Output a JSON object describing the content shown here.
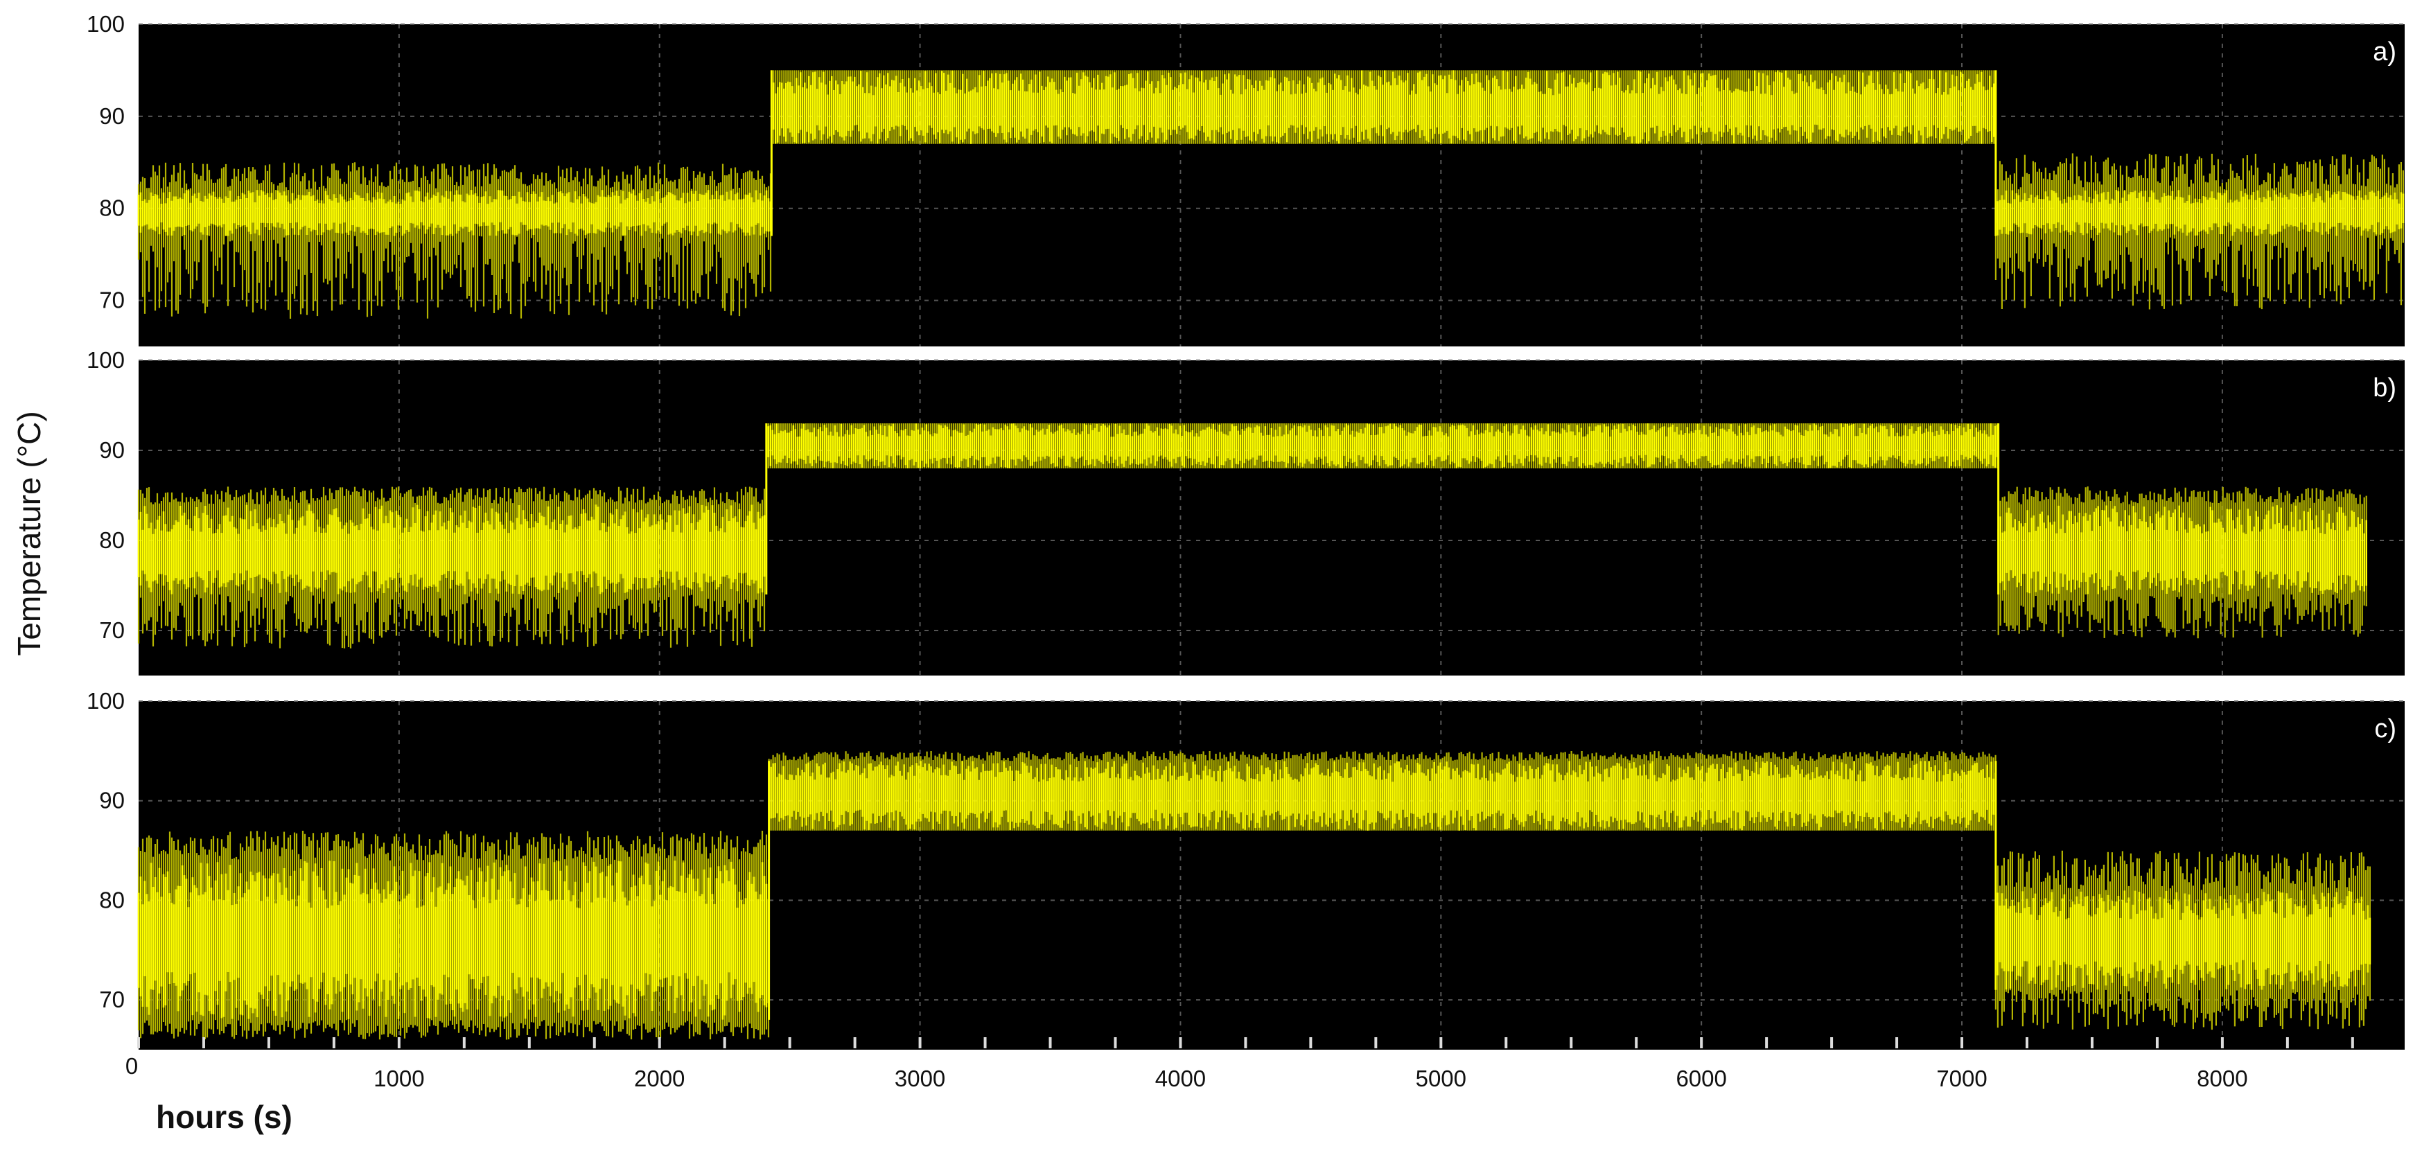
{
  "chart_data": {
    "type": "line",
    "title": "",
    "xlabel": "hours (s)",
    "ylabel": "Temperature (°C)",
    "xlim": [
      0,
      8700
    ],
    "x_ticks": [
      0,
      1000,
      2000,
      3000,
      4000,
      5000,
      6000,
      7000,
      8000
    ],
    "x_tick_labels": [
      "0",
      "1000",
      "2000",
      "3000",
      "4000",
      "5000",
      "6000",
      "7000",
      "8000"
    ],
    "grid": true,
    "legend": "none",
    "colors": {
      "background": "#000000",
      "trace": "#ffff00",
      "trace_dim": "#b3b300",
      "grid": "#555555"
    },
    "panels": [
      {
        "tag": "a)",
        "ylim": [
          65,
          100
        ],
        "y_ticks": [
          70,
          80,
          90,
          100
        ],
        "y_tick_labels": [
          "70",
          "80",
          "90",
          "100"
        ],
        "series": [
          {
            "segments": [
              {
                "x_start": 0,
                "x_end": 2430,
                "center": 79.5,
                "band_min": 77,
                "band_max": 82,
                "noise_min": 68,
                "noise_max": 85
              },
              {
                "x_start": 2430,
                "x_end": 7130,
                "center": 90.5,
                "band_min": 87,
                "band_max": 95,
                "noise_min": 87,
                "noise_max": 95
              },
              {
                "x_start": 7130,
                "x_end": 8700,
                "center": 79.5,
                "band_min": 77,
                "band_max": 82,
                "noise_min": 69,
                "noise_max": 86
              }
            ]
          }
        ]
      },
      {
        "tag": "b)",
        "ylim": [
          65,
          100
        ],
        "y_ticks": [
          70,
          80,
          90,
          100
        ],
        "y_tick_labels": [
          "70",
          "80",
          "90",
          "100"
        ],
        "series": [
          {
            "segments": [
              {
                "x_start": 0,
                "x_end": 2410,
                "center": 78.5,
                "band_min": 74,
                "band_max": 84,
                "noise_min": 68,
                "noise_max": 86
              },
              {
                "x_start": 2410,
                "x_end": 7140,
                "center": 90.5,
                "band_min": 88,
                "band_max": 93,
                "noise_min": 88,
                "noise_max": 93
              },
              {
                "x_start": 7140,
                "x_end": 8560,
                "center": 78.5,
                "band_min": 74,
                "band_max": 84,
                "noise_min": 69,
                "noise_max": 86
              }
            ]
          }
        ]
      },
      {
        "tag": "c)",
        "ylim": [
          65,
          100
        ],
        "y_ticks": [
          70,
          80,
          90,
          100
        ],
        "y_tick_labels": [
          "70",
          "80",
          "90",
          "100"
        ],
        "series": [
          {
            "segments": [
              {
                "x_start": 0,
                "x_end": 2420,
                "center": 76,
                "band_min": 68,
                "band_max": 84,
                "noise_min": 66,
                "noise_max": 87
              },
              {
                "x_start": 2420,
                "x_end": 7130,
                "center": 90.5,
                "band_min": 87,
                "band_max": 94,
                "noise_min": 87,
                "noise_max": 95
              },
              {
                "x_start": 7130,
                "x_end": 8570,
                "center": 76,
                "band_min": 71,
                "band_max": 81,
                "noise_min": 67,
                "noise_max": 85
              }
            ]
          }
        ]
      }
    ]
  }
}
